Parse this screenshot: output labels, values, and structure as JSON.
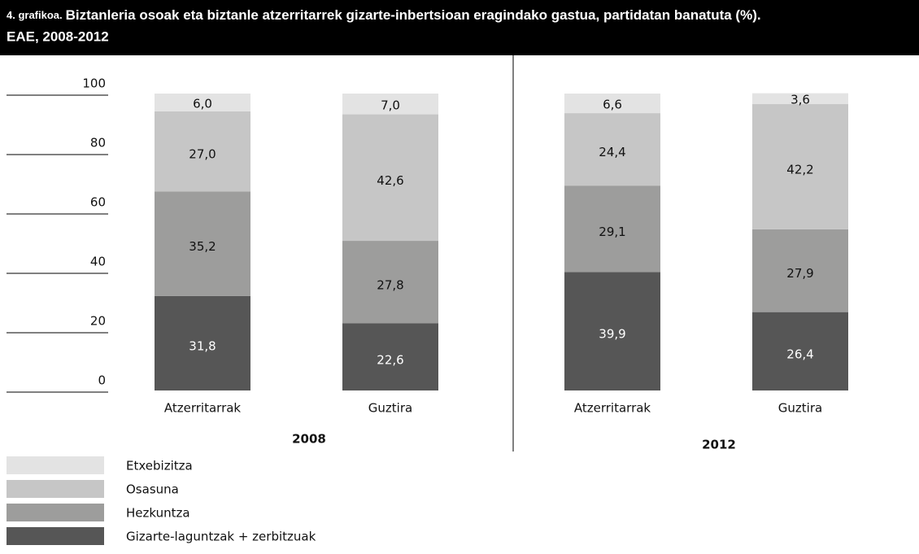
{
  "chart_data": {
    "type": "stacked_bar",
    "title_number": "4. grafikoa.",
    "title": "Biztanleria osoak eta biztanle atzerritarrek gizarte-inbertsioan eragindako gastua, partidatan banatuta (%).",
    "subtitle": "EAE, 2008-2012",
    "groups": [
      {
        "name": "2008",
        "categories": [
          "Atzerritarrak",
          "Guztira"
        ]
      },
      {
        "name": "2012",
        "categories": [
          "Atzerritarrak",
          "Guztira"
        ]
      }
    ],
    "series": [
      {
        "name": "Gizarte-laguntzak + zerbitzuak",
        "color": "#565656",
        "values": [
          31.8,
          22.6,
          39.9,
          26.4
        ],
        "value_labels": [
          "31,8",
          "22,6",
          "39,9",
          "26,4"
        ]
      },
      {
        "name": "Hezkuntza",
        "color": "#9d9d9c",
        "values": [
          35.2,
          27.8,
          29.1,
          27.9
        ],
        "value_labels": [
          "35,2",
          "27,8",
          "29,1",
          "27,9"
        ]
      },
      {
        "name": "Osasuna",
        "color": "#c6c6c6",
        "values": [
          27.0,
          42.6,
          24.4,
          42.2
        ],
        "value_labels": [
          "27,0",
          "42,6",
          "24,4",
          "42,2"
        ]
      },
      {
        "name": "Etxebizitza",
        "color": "#e3e3e3",
        "values": [
          6.0,
          7.0,
          6.6,
          3.6
        ],
        "value_labels": [
          "6,0",
          "7,0",
          "6,6",
          "3,6"
        ]
      }
    ],
    "ylim": [
      0,
      100
    ],
    "yticks": [
      0,
      20,
      40,
      60,
      80,
      100
    ]
  }
}
